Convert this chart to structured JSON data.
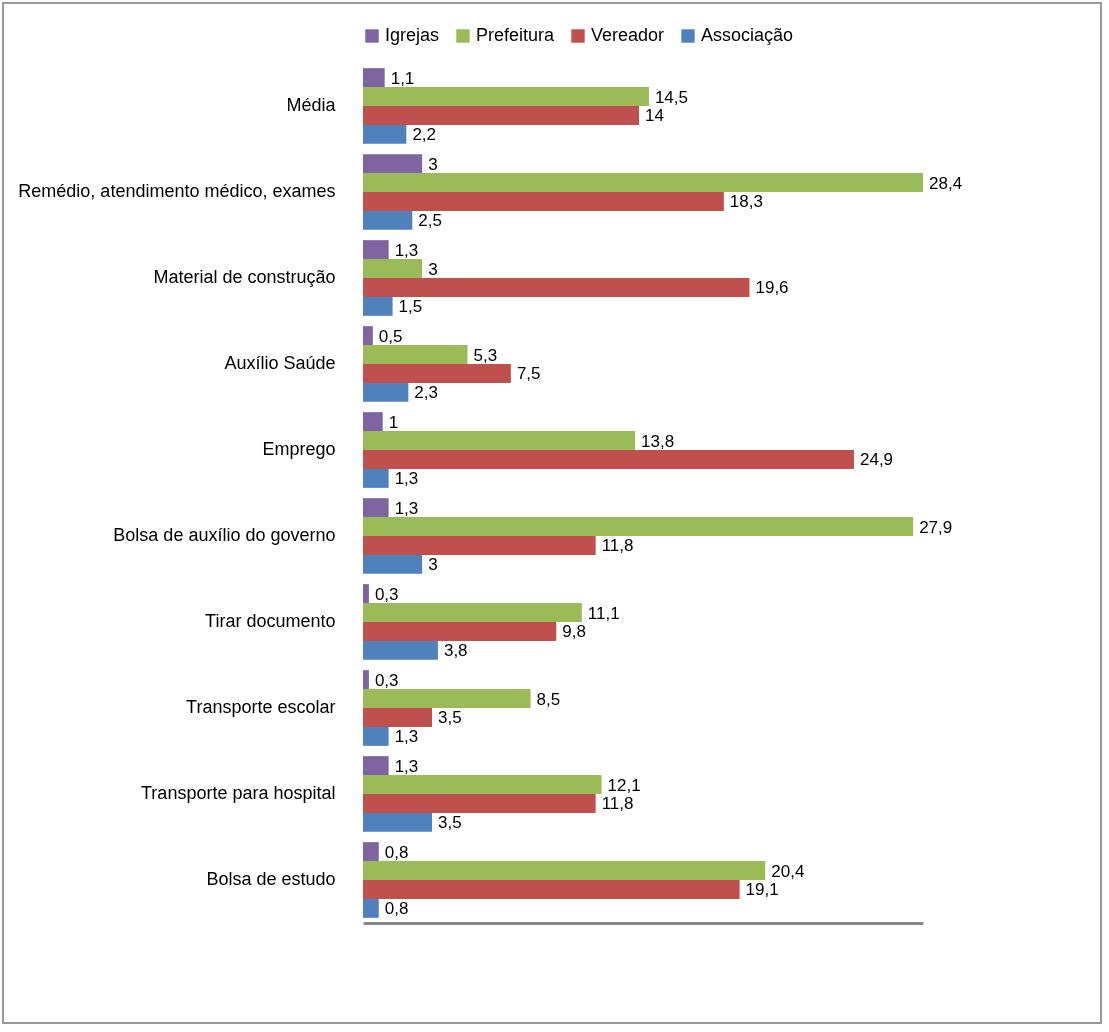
{
  "chart_data": {
    "type": "bar",
    "orientation": "horizontal",
    "legend": "top",
    "categories": [
      "Média",
      "Remédio, atendimento médico, exames",
      "Material de construção",
      "Auxílio Saúde",
      "Emprego",
      "Bolsa de auxílio do governo",
      "Tirar documento",
      "Transporte escolar",
      "Transporte para hospital",
      "Bolsa de estudo"
    ],
    "series": [
      {
        "name": "Igrejas",
        "color": "#8064a2",
        "values": [
          1.1,
          3,
          1.3,
          0.5,
          1,
          1.3,
          0.3,
          0.3,
          1.3,
          0.8
        ],
        "value_labels": [
          "1,1",
          "3",
          "1,3",
          "0,5",
          "1",
          "1,3",
          "0,3",
          "0,3",
          "1,3",
          "0,8"
        ]
      },
      {
        "name": "Prefeitura",
        "color": "#9bbb59",
        "values": [
          14.5,
          28.4,
          3,
          5.3,
          13.8,
          27.9,
          11.1,
          8.5,
          12.1,
          20.4
        ],
        "value_labels": [
          "14,5",
          "28,4",
          "3",
          "5,3",
          "13,8",
          "27,9",
          "11,1",
          "8,5",
          "12,1",
          "20,4"
        ]
      },
      {
        "name": "Vereador",
        "color": "#c0504d",
        "values": [
          14,
          18.3,
          19.6,
          7.5,
          24.9,
          11.8,
          9.8,
          3.5,
          11.8,
          19.1
        ],
        "value_labels": [
          "14",
          "18,3",
          "19,6",
          "7,5",
          "24,9",
          "11,8",
          "9,8",
          "3,5",
          "11,8",
          "19,1"
        ]
      },
      {
        "name": "Associação",
        "color": "#4f81bd",
        "values": [
          2.2,
          2.5,
          1.5,
          2.3,
          1.3,
          3,
          3.8,
          1.3,
          3.5,
          0.8
        ],
        "value_labels": [
          "2,2",
          "2,5",
          "1,5",
          "2,3",
          "1,3",
          "3",
          "3,8",
          "1,3",
          "3,5",
          "0,8"
        ]
      }
    ]
  }
}
